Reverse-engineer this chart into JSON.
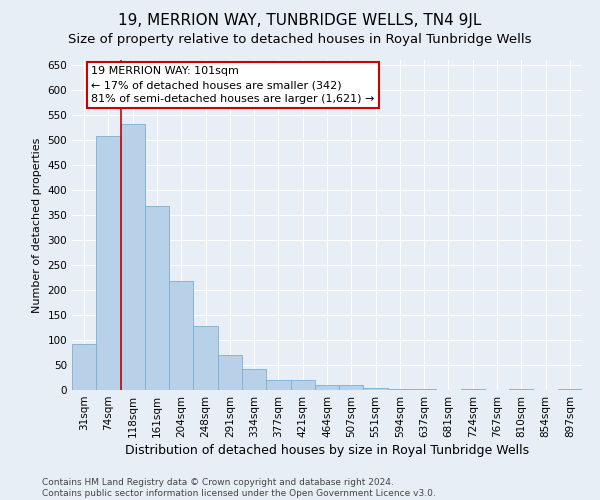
{
  "title": "19, MERRION WAY, TUNBRIDGE WELLS, TN4 9JL",
  "subtitle": "Size of property relative to detached houses in Royal Tunbridge Wells",
  "xlabel": "Distribution of detached houses by size in Royal Tunbridge Wells",
  "ylabel": "Number of detached properties",
  "categories": [
    "31sqm",
    "74sqm",
    "118sqm",
    "161sqm",
    "204sqm",
    "248sqm",
    "291sqm",
    "334sqm",
    "377sqm",
    "421sqm",
    "464sqm",
    "507sqm",
    "551sqm",
    "594sqm",
    "637sqm",
    "681sqm",
    "724sqm",
    "767sqm",
    "810sqm",
    "854sqm",
    "897sqm"
  ],
  "values": [
    93,
    508,
    532,
    368,
    218,
    128,
    70,
    42,
    20,
    20,
    10,
    10,
    5,
    3,
    3,
    0,
    2,
    0,
    2,
    0,
    2
  ],
  "bar_color": "#b8d0e8",
  "bar_edge_color": "#7bafd4",
  "vline_x": 1.5,
  "vline_color": "#cc0000",
  "annotation_text": "19 MERRION WAY: 101sqm\n← 17% of detached houses are smaller (342)\n81% of semi-detached houses are larger (1,621) →",
  "annotation_box_facecolor": "#ffffff",
  "annotation_box_edgecolor": "#cc0000",
  "ylim": [
    0,
    660
  ],
  "yticks": [
    0,
    50,
    100,
    150,
    200,
    250,
    300,
    350,
    400,
    450,
    500,
    550,
    600,
    650
  ],
  "background_color": "#e8eef5",
  "grid_color": "#ffffff",
  "footer_line1": "Contains HM Land Registry data © Crown copyright and database right 2024.",
  "footer_line2": "Contains public sector information licensed under the Open Government Licence v3.0.",
  "title_fontsize": 11,
  "subtitle_fontsize": 9.5,
  "xlabel_fontsize": 9,
  "ylabel_fontsize": 8,
  "tick_fontsize": 7.5,
  "annotation_fontsize": 8,
  "footer_fontsize": 6.5
}
